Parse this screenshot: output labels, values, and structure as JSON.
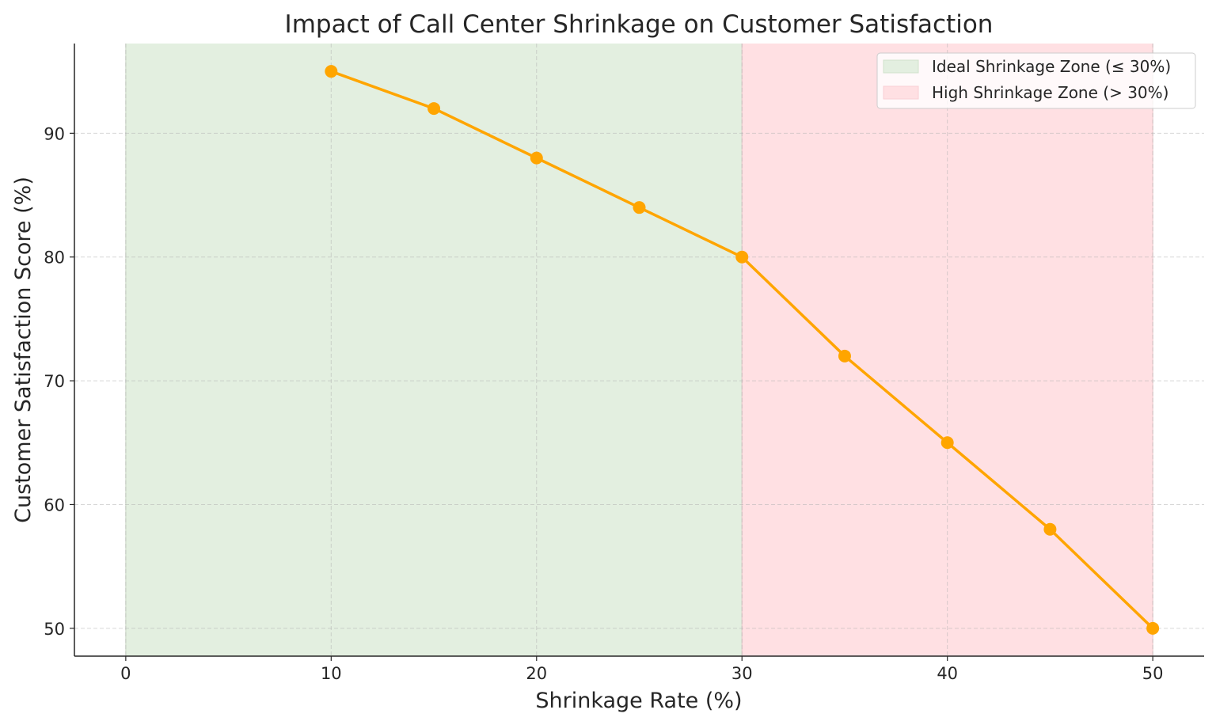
{
  "chart_data": {
    "type": "line",
    "title": "Impact of Call Center Shrinkage on Customer Satisfaction",
    "xlabel": "Shrinkage Rate (%)",
    "ylabel": "Customer Satisfaction Score (%)",
    "xlim": [
      -2.5,
      52.5
    ],
    "ylim": [
      47.75,
      97.25
    ],
    "xticks": [
      0,
      10,
      20,
      30,
      40,
      50
    ],
    "yticks": [
      50,
      60,
      70,
      80,
      90
    ],
    "grid": true,
    "legend_placement": "top-right",
    "x": [
      10,
      15,
      20,
      25,
      30,
      35,
      40,
      45,
      50
    ],
    "series": [
      {
        "values": [
          95,
          92,
          88,
          84,
          80,
          72,
          65,
          58,
          50
        ],
        "color": "#FFA500",
        "marker": "circle"
      }
    ],
    "shaded_regions": [
      {
        "label": "Ideal Shrinkage Zone (≤ 30%)",
        "x_range": [
          0,
          30
        ],
        "color": "#E3EFE0"
      },
      {
        "label": "High Shrinkage Zone (> 30%)",
        "x_range": [
          30,
          50
        ],
        "color": "#FFE0E3"
      }
    ]
  }
}
